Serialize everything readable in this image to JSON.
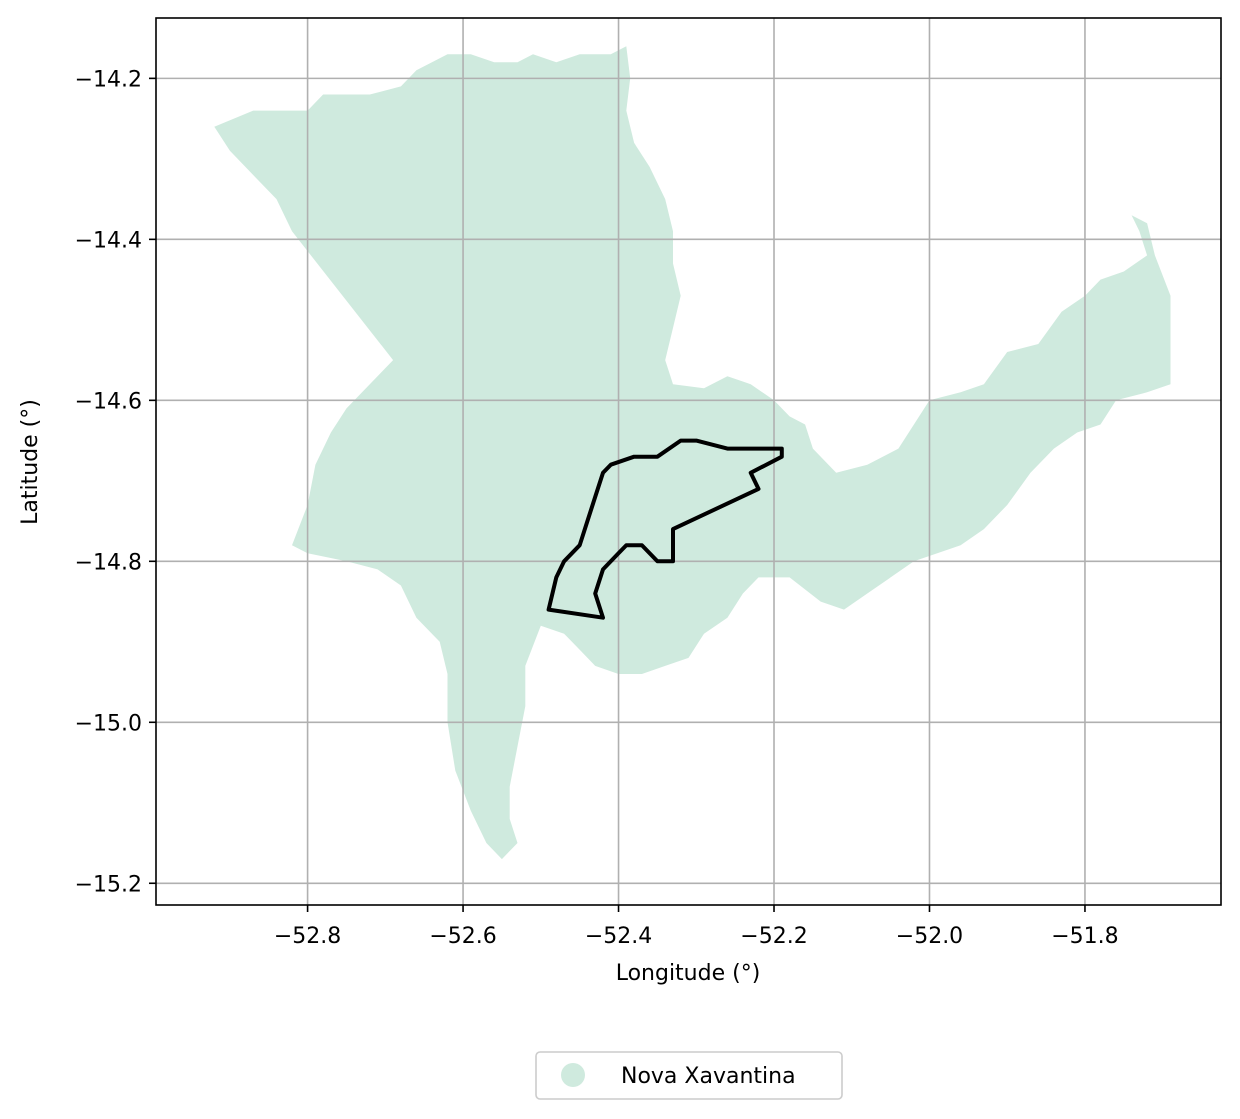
{
  "chart_data": {
    "type": "map",
    "xlabel": "Longitude (°)",
    "ylabel": "Latitude (°)",
    "xlim": [
      -52.995,
      -51.625
    ],
    "ylim": [
      -15.227,
      -14.125
    ],
    "xticks": [
      -52.8,
      -52.6,
      -52.4,
      -52.2,
      -52.0,
      -51.8
    ],
    "yticks": [
      -14.2,
      -14.4,
      -14.6,
      -14.8,
      -15.0,
      -15.2
    ],
    "xtick_labels": [
      "−52.8",
      "−52.6",
      "−52.4",
      "−52.2",
      "−52.0",
      "−51.8"
    ],
    "ytick_labels": [
      "−14.2",
      "−14.4",
      "−14.6",
      "−14.8",
      "−15.0",
      "−15.2"
    ],
    "grid": true,
    "legend_position": "bottom-center",
    "series": [
      {
        "name": "Nova Xavantina",
        "kind": "region",
        "color": "#cfeade",
        "coordinates": [
          [
            -52.92,
            -14.26
          ],
          [
            -52.87,
            -14.24
          ],
          [
            -52.8,
            -14.24
          ],
          [
            -52.78,
            -14.22
          ],
          [
            -52.72,
            -14.22
          ],
          [
            -52.68,
            -14.21
          ],
          [
            -52.66,
            -14.19
          ],
          [
            -52.62,
            -14.17
          ],
          [
            -52.59,
            -14.17
          ],
          [
            -52.56,
            -14.18
          ],
          [
            -52.53,
            -14.18
          ],
          [
            -52.51,
            -14.17
          ],
          [
            -52.48,
            -14.18
          ],
          [
            -52.45,
            -14.17
          ],
          [
            -52.41,
            -14.17
          ],
          [
            -52.39,
            -14.16
          ],
          [
            -52.385,
            -14.2
          ],
          [
            -52.39,
            -14.24
          ],
          [
            -52.38,
            -14.28
          ],
          [
            -52.36,
            -14.31
          ],
          [
            -52.34,
            -14.35
          ],
          [
            -52.33,
            -14.39
          ],
          [
            -52.33,
            -14.43
          ],
          [
            -52.32,
            -14.47
          ],
          [
            -52.33,
            -14.51
          ],
          [
            -52.34,
            -14.55
          ],
          [
            -52.33,
            -14.58
          ],
          [
            -52.29,
            -14.585
          ],
          [
            -52.26,
            -14.57
          ],
          [
            -52.23,
            -14.58
          ],
          [
            -52.2,
            -14.6
          ],
          [
            -52.18,
            -14.62
          ],
          [
            -52.16,
            -14.63
          ],
          [
            -52.15,
            -14.66
          ],
          [
            -52.12,
            -14.69
          ],
          [
            -52.08,
            -14.68
          ],
          [
            -52.04,
            -14.66
          ],
          [
            -52.0,
            -14.6
          ],
          [
            -51.96,
            -14.59
          ],
          [
            -51.93,
            -14.58
          ],
          [
            -51.9,
            -14.54
          ],
          [
            -51.86,
            -14.53
          ],
          [
            -51.83,
            -14.49
          ],
          [
            -51.8,
            -14.47
          ],
          [
            -51.78,
            -14.45
          ],
          [
            -51.75,
            -14.44
          ],
          [
            -51.72,
            -14.42
          ],
          [
            -51.73,
            -14.39
          ],
          [
            -51.74,
            -14.37
          ],
          [
            -51.72,
            -14.38
          ],
          [
            -51.71,
            -14.42
          ],
          [
            -51.69,
            -14.47
          ],
          [
            -51.69,
            -14.53
          ],
          [
            -51.69,
            -14.58
          ],
          [
            -51.72,
            -14.59
          ],
          [
            -51.76,
            -14.6
          ],
          [
            -51.78,
            -14.63
          ],
          [
            -51.81,
            -14.64
          ],
          [
            -51.84,
            -14.66
          ],
          [
            -51.87,
            -14.69
          ],
          [
            -51.9,
            -14.73
          ],
          [
            -51.93,
            -14.76
          ],
          [
            -51.96,
            -14.78
          ],
          [
            -51.99,
            -14.79
          ],
          [
            -52.02,
            -14.8
          ],
          [
            -52.05,
            -14.82
          ],
          [
            -52.08,
            -14.84
          ],
          [
            -52.11,
            -14.86
          ],
          [
            -52.14,
            -14.85
          ],
          [
            -52.18,
            -14.82
          ],
          [
            -52.22,
            -14.82
          ],
          [
            -52.24,
            -14.84
          ],
          [
            -52.26,
            -14.87
          ],
          [
            -52.29,
            -14.89
          ],
          [
            -52.31,
            -14.92
          ],
          [
            -52.34,
            -14.93
          ],
          [
            -52.37,
            -14.94
          ],
          [
            -52.4,
            -14.94
          ],
          [
            -52.43,
            -14.93
          ],
          [
            -52.45,
            -14.91
          ],
          [
            -52.47,
            -14.89
          ],
          [
            -52.5,
            -14.88
          ],
          [
            -52.52,
            -14.93
          ],
          [
            -52.52,
            -14.98
          ],
          [
            -52.53,
            -15.03
          ],
          [
            -52.54,
            -15.08
          ],
          [
            -52.54,
            -15.12
          ],
          [
            -52.53,
            -15.15
          ],
          [
            -52.55,
            -15.17
          ],
          [
            -52.57,
            -15.15
          ],
          [
            -52.59,
            -15.11
          ],
          [
            -52.61,
            -15.06
          ],
          [
            -52.62,
            -15.0
          ],
          [
            -52.62,
            -14.94
          ],
          [
            -52.63,
            -14.9
          ],
          [
            -52.66,
            -14.87
          ],
          [
            -52.68,
            -14.83
          ],
          [
            -52.71,
            -14.81
          ],
          [
            -52.75,
            -14.8
          ],
          [
            -52.8,
            -14.79
          ],
          [
            -52.82,
            -14.78
          ],
          [
            -52.8,
            -14.73
          ],
          [
            -52.79,
            -14.68
          ],
          [
            -52.77,
            -14.64
          ],
          [
            -52.75,
            -14.61
          ],
          [
            -52.69,
            -14.55
          ],
          [
            -52.82,
            -14.39
          ],
          [
            -52.84,
            -14.35
          ],
          [
            -52.87,
            -14.32
          ],
          [
            -52.9,
            -14.29
          ]
        ]
      },
      {
        "name": "",
        "kind": "outline",
        "color": "#000000",
        "coordinates": [
          [
            -52.49,
            -14.86
          ],
          [
            -52.42,
            -14.87
          ],
          [
            -52.43,
            -14.84
          ],
          [
            -52.42,
            -14.81
          ],
          [
            -52.4,
            -14.79
          ],
          [
            -52.39,
            -14.78
          ],
          [
            -52.37,
            -14.78
          ],
          [
            -52.35,
            -14.8
          ],
          [
            -52.33,
            -14.8
          ],
          [
            -52.33,
            -14.76
          ],
          [
            -52.22,
            -14.71
          ],
          [
            -52.23,
            -14.69
          ],
          [
            -52.19,
            -14.67
          ],
          [
            -52.19,
            -14.66
          ],
          [
            -52.22,
            -14.66
          ],
          [
            -52.26,
            -14.66
          ],
          [
            -52.3,
            -14.65
          ],
          [
            -52.32,
            -14.65
          ],
          [
            -52.35,
            -14.67
          ],
          [
            -52.38,
            -14.67
          ],
          [
            -52.41,
            -14.68
          ],
          [
            -52.42,
            -14.69
          ],
          [
            -52.43,
            -14.72
          ],
          [
            -52.44,
            -14.75
          ],
          [
            -52.45,
            -14.78
          ],
          [
            -52.47,
            -14.8
          ],
          [
            -52.48,
            -14.82
          ]
        ]
      }
    ]
  },
  "legend": {
    "items": [
      {
        "label": "Nova Xavantina",
        "color": "#cfeade"
      }
    ]
  }
}
